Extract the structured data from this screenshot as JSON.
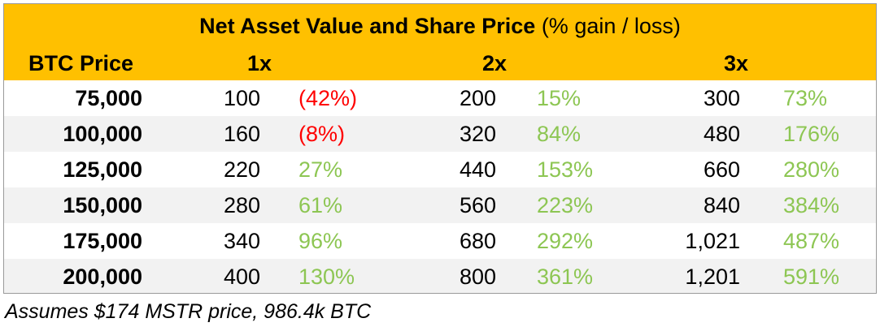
{
  "header": {
    "title_bold": "Net Asset Value and Share Price",
    "title_normal": "(% gain / loss)",
    "columns": {
      "btc": "BTC Price",
      "c1": "1x",
      "c2": "2x",
      "c3": "3x"
    }
  },
  "colors": {
    "header_bg": "#ffc000",
    "gain": "#8dc653",
    "loss": "#ff0000",
    "alt_row": "#f2f2f2"
  },
  "rows": [
    {
      "btc": "75,000",
      "v1": "100",
      "p1": "(42%)",
      "p1_sign": "loss",
      "v2": "200",
      "p2": "15%",
      "p2_sign": "gain",
      "v3": "300",
      "p3": "73%",
      "p3_sign": "gain"
    },
    {
      "btc": "100,000",
      "v1": "160",
      "p1": "(8%)",
      "p1_sign": "loss",
      "v2": "320",
      "p2": "84%",
      "p2_sign": "gain",
      "v3": "480",
      "p3": "176%",
      "p3_sign": "gain"
    },
    {
      "btc": "125,000",
      "v1": "220",
      "p1": "27%",
      "p1_sign": "gain",
      "v2": "440",
      "p2": "153%",
      "p2_sign": "gain",
      "v3": "660",
      "p3": "280%",
      "p3_sign": "gain"
    },
    {
      "btc": "150,000",
      "v1": "280",
      "p1": "61%",
      "p1_sign": "gain",
      "v2": "560",
      "p2": "223%",
      "p2_sign": "gain",
      "v3": "840",
      "p3": "384%",
      "p3_sign": "gain"
    },
    {
      "btc": "175,000",
      "v1": "340",
      "p1": "96%",
      "p1_sign": "gain",
      "v2": "680",
      "p2": "292%",
      "p2_sign": "gain",
      "v3": "1,021",
      "p3": "487%",
      "p3_sign": "gain"
    },
    {
      "btc": "200,000",
      "v1": "400",
      "p1": "130%",
      "p1_sign": "gain",
      "v2": "800",
      "p2": "361%",
      "p2_sign": "gain",
      "v3": "1,201",
      "p3": "591%",
      "p3_sign": "gain"
    }
  ],
  "footnote": "Assumes $174 MSTR price, 986.4k BTC"
}
